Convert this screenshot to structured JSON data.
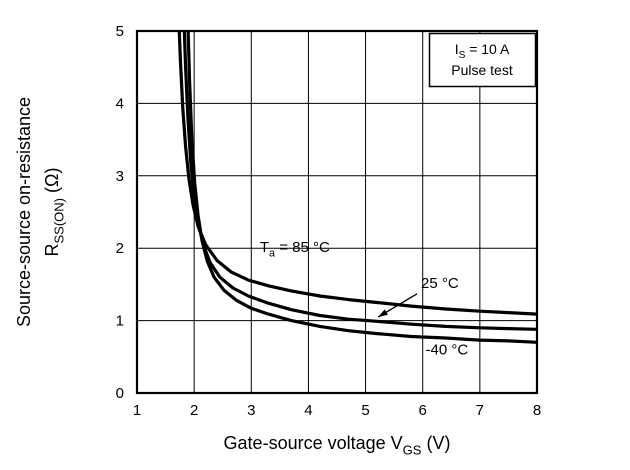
{
  "chart_data": {
    "type": "line",
    "title": "",
    "xlabel": "Gate-source voltage V_GS (V)",
    "ylabel": "Source-source on-resistance R_SS(ON) (Ohm)",
    "xlabel_parts": [
      {
        "t": "Gate-source voltage  V"
      },
      {
        "t": "GS",
        "sub": true
      },
      {
        "t": "  (V)"
      }
    ],
    "ylabel_line1": "Source-source on-resistance",
    "ylabel_line2_parts": [
      {
        "t": "R"
      },
      {
        "t": "SS(ON)",
        "sub": true
      },
      {
        "t": "  (Ω)"
      }
    ],
    "xlim": [
      1,
      8
    ],
    "ylim": [
      0,
      5
    ],
    "xticks": [
      1,
      2,
      3,
      4,
      5,
      6,
      7,
      8
    ],
    "yticks": [
      0,
      1,
      2,
      3,
      4,
      5
    ],
    "grid": true,
    "legend_position": "none",
    "line_color": "#000000",
    "annotation_box": {
      "lines": [
        {
          "parts": [
            {
              "t": "I"
            },
            {
              "t": "S",
              "sub": true
            },
            {
              "t": " = 10 A"
            }
          ]
        },
        {
          "parts": [
            {
              "t": "Pulse test"
            }
          ]
        }
      ]
    },
    "series": [
      {
        "name": "Ta = 85 °C",
        "x": [
          1.72,
          1.76,
          1.8,
          1.85,
          1.91,
          1.98,
          2.07,
          2.2,
          2.4,
          2.65,
          2.95,
          3.3,
          3.7,
          4.2,
          4.7,
          5.2,
          5.8,
          6.4,
          7.0,
          7.5,
          8.0
        ],
        "y": [
          5.4,
          4.6,
          3.95,
          3.4,
          2.95,
          2.6,
          2.3,
          2.05,
          1.83,
          1.67,
          1.56,
          1.48,
          1.41,
          1.34,
          1.29,
          1.25,
          1.2,
          1.16,
          1.13,
          1.11,
          1.09
        ]
      },
      {
        "name": "25 °C",
        "x": [
          1.81,
          1.85,
          1.89,
          1.94,
          2.0,
          2.07,
          2.16,
          2.28,
          2.45,
          2.68,
          2.95,
          3.3,
          3.7,
          4.2,
          4.7,
          5.2,
          5.8,
          6.4,
          7.0,
          7.5,
          8.0
        ],
        "y": [
          5.4,
          4.5,
          3.8,
          3.2,
          2.7,
          2.35,
          2.05,
          1.8,
          1.6,
          1.45,
          1.34,
          1.24,
          1.15,
          1.07,
          1.02,
          0.99,
          0.95,
          0.92,
          0.9,
          0.89,
          0.88
        ]
      },
      {
        "name": "-40 °C",
        "x": [
          1.88,
          1.92,
          1.96,
          2.01,
          2.07,
          2.14,
          2.23,
          2.35,
          2.52,
          2.74,
          3.0,
          3.3,
          3.7,
          4.2,
          4.7,
          5.2,
          5.8,
          6.4,
          7.0,
          7.5,
          8.0
        ],
        "y": [
          5.4,
          4.3,
          3.5,
          2.9,
          2.45,
          2.1,
          1.82,
          1.6,
          1.42,
          1.28,
          1.17,
          1.09,
          1.0,
          0.92,
          0.86,
          0.82,
          0.78,
          0.76,
          0.73,
          0.72,
          0.7
        ]
      }
    ],
    "curve_labels": [
      {
        "parts": [
          {
            "t": "T"
          },
          {
            "t": "a",
            "sub": true
          },
          {
            "t": " = 85 °C"
          }
        ],
        "x": 3.15,
        "y": 1.95,
        "anchor": "start"
      },
      {
        "parts": [
          {
            "t": "25 °C"
          }
        ],
        "x": 5.97,
        "y": 1.45,
        "anchor": "start"
      },
      {
        "parts": [
          {
            "t": "-40 °C"
          }
        ],
        "x": 6.05,
        "y": 0.53,
        "anchor": "start"
      }
    ],
    "arrow": {
      "from_x": 5.9,
      "from_y": 1.37,
      "to_x": 5.22,
      "to_y": 1.05
    }
  }
}
